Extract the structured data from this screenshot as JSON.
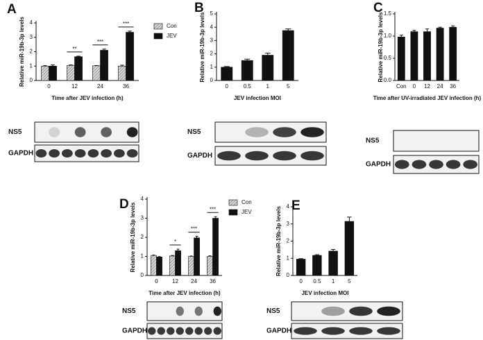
{
  "chart_data": [
    {
      "type": "bar",
      "panel": "A",
      "ylabel": "Relative miR-19b-3p levels",
      "xlabel": "Time after JEV infection (h)",
      "categories": [
        "0",
        "12",
        "24",
        "36"
      ],
      "series": [
        {
          "name": "Con",
          "color": "#bdbdbd",
          "values": [
            1.0,
            1.05,
            1.02,
            1.0
          ],
          "errors": [
            0.03,
            0.03,
            0.02,
            0.06
          ]
        },
        {
          "name": "JEV",
          "color": "#111111",
          "values": [
            1.0,
            1.65,
            2.1,
            3.35
          ],
          "errors": [
            0.08,
            0.04,
            0.08,
            0.08
          ]
        }
      ],
      "significance": [
        null,
        "**",
        "***",
        "***"
      ],
      "ylim": [
        0,
        4
      ],
      "yticks": [
        0,
        1,
        2,
        3,
        4
      ],
      "blots": [
        "NS5",
        "GAPDH"
      ]
    },
    {
      "type": "bar",
      "panel": "B",
      "ylabel": "Relative miR-19b-3p levels",
      "xlabel": "JEV infection MOI",
      "categories": [
        "0",
        "0.5",
        "1",
        "5"
      ],
      "series": [
        {
          "color": "#111111",
          "values": [
            1.0,
            1.5,
            1.9,
            3.75
          ],
          "errors": [
            0.05,
            0.1,
            0.15,
            0.12
          ]
        }
      ],
      "ylim": [
        0,
        5
      ],
      "yticks": [
        0,
        1,
        2,
        3,
        4,
        5
      ],
      "blots": [
        "NS5",
        "GAPDH"
      ]
    },
    {
      "type": "bar",
      "panel": "C",
      "ylabel": "Relative miR-19b-3p levels",
      "xlabel": "Time after UV-irradiated JEV infection (h)",
      "categories": [
        "Con",
        "0",
        "12",
        "24",
        "36"
      ],
      "series": [
        {
          "color": "#111111",
          "values": [
            0.98,
            1.1,
            1.1,
            1.18,
            1.2
          ],
          "errors": [
            0.04,
            0.03,
            0.06,
            0.02,
            0.03
          ]
        }
      ],
      "ylim": [
        0,
        1.5
      ],
      "yticks": [
        {
          "value": 0,
          "label": "0.0"
        },
        {
          "value": 0.5,
          "label": "0.5"
        },
        {
          "value": 1,
          "label": "1.0"
        },
        {
          "value": 1.5,
          "label": "1.5"
        }
      ],
      "blots": [
        "NS5",
        "GAPDH"
      ]
    },
    {
      "type": "bar",
      "panel": "D",
      "ylabel": "Relative miR-19b-3p levels",
      "xlabel": "Time after JEV infection (h)",
      "categories": [
        "0",
        "12",
        "24",
        "36"
      ],
      "series": [
        {
          "name": "Con",
          "color": "#bdbdbd",
          "values": [
            1.05,
            1.02,
            1.0,
            1.0
          ],
          "errors": [
            0.02,
            0.03,
            0.02,
            0.03
          ]
        },
        {
          "name": "JEV",
          "color": "#111111",
          "values": [
            0.97,
            1.3,
            1.97,
            3.0
          ],
          "errors": [
            0.02,
            0.08,
            0.08,
            0.08
          ]
        }
      ],
      "significance": [
        null,
        "*",
        "***",
        "***"
      ],
      "ylim": [
        0,
        4
      ],
      "yticks": [
        0,
        1,
        2,
        3,
        4
      ],
      "blots": [
        "NS5",
        "GAPDH"
      ]
    },
    {
      "type": "bar",
      "panel": "E",
      "ylabel": "Relative miR-19b-3p levels",
      "xlabel": "JEV infection MOI",
      "categories": [
        "0",
        "0.5",
        "1",
        "5"
      ],
      "series": [
        {
          "color": "#111111",
          "values": [
            0.95,
            1.17,
            1.42,
            3.15
          ],
          "errors": [
            0.03,
            0.04,
            0.1,
            0.25
          ]
        }
      ],
      "ylim": [
        0,
        4
      ],
      "yticks": [
        0,
        1,
        2,
        3,
        4
      ],
      "blots": [
        "NS5",
        "GAPDH"
      ]
    }
  ]
}
